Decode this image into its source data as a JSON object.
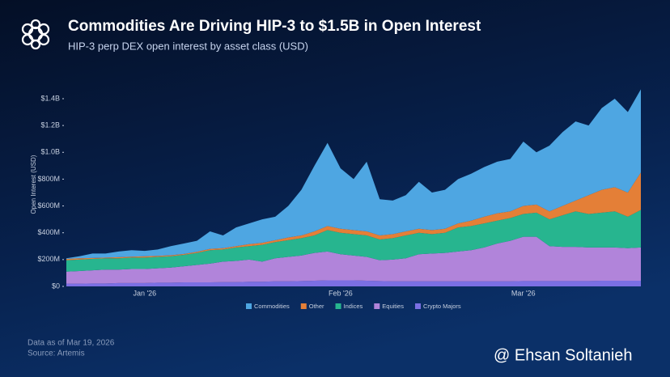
{
  "chart_data": {
    "type": "stacked-area",
    "title": "Commodities Are Driving HIP-3 to $1.5B in Open Interest",
    "subtitle": "HIP-3 perp DEX open interest by asset class (USD)",
    "y_label": "Open Interest (USD)",
    "footnote": "Data as of Mar 19, 2026",
    "source": "Source: Artemis",
    "watermark": "@ Ehsan Soltanieh",
    "categories": [
      null,
      null,
      null,
      null,
      null,
      null,
      "Jan '26",
      null,
      null,
      null,
      null,
      null,
      null,
      null,
      null,
      null,
      null,
      null,
      null,
      null,
      null,
      "Feb '26",
      null,
      null,
      null,
      null,
      null,
      null,
      null,
      null,
      null,
      null,
      null,
      null,
      null,
      "Mar '26",
      null,
      null,
      null,
      null,
      null,
      null,
      null,
      null,
      null
    ],
    "ylim": [
      0,
      1500000000
    ],
    "yticks": [
      {
        "value": 0,
        "label": "$0"
      },
      {
        "value": 200000000,
        "label": "$200M"
      },
      {
        "value": 400000000,
        "label": "$400M"
      },
      {
        "value": 600000000,
        "label": "$600M"
      },
      {
        "value": 800000000,
        "label": "$800M"
      },
      {
        "value": 1000000000,
        "label": "$1.0B"
      },
      {
        "value": 1200000000,
        "label": "$1.2B"
      },
      {
        "value": 1400000000,
        "label": "$1.4B"
      }
    ],
    "series": [
      {
        "name": "Commodities",
        "color": "#4ea6e2",
        "values": [
          5000000,
          15000000,
          33000000,
          30000000,
          42000000,
          48000000,
          40000000,
          47000000,
          68000000,
          78000000,
          82000000,
          130000000,
          95000000,
          140000000,
          155000000,
          175000000,
          175000000,
          235000000,
          340000000,
          490000000,
          620000000,
          450000000,
          380000000,
          520000000,
          270000000,
          250000000,
          270000000,
          350000000,
          280000000,
          290000000,
          330000000,
          350000000,
          370000000,
          385000000,
          390000000,
          480000000,
          390000000,
          490000000,
          550000000,
          590000000,
          520000000,
          610000000,
          660000000,
          600000000,
          620000000
        ]
      },
      {
        "name": "Other",
        "color": "#e47f37",
        "values": [
          10000000,
          10000000,
          7000000,
          5000000,
          8000000,
          7000000,
          10000000,
          8000000,
          7000000,
          7000000,
          8000000,
          10000000,
          10000000,
          10000000,
          15000000,
          15000000,
          15000000,
          20000000,
          20000000,
          30000000,
          30000000,
          30000000,
          30000000,
          30000000,
          30000000,
          30000000,
          30000000,
          30000000,
          30000000,
          30000000,
          30000000,
          40000000,
          50000000,
          55000000,
          50000000,
          60000000,
          60000000,
          60000000,
          70000000,
          80000000,
          140000000,
          170000000,
          180000000,
          180000000,
          280000000
        ]
      },
      {
        "name": "Indices",
        "color": "#27b58f",
        "values": [
          85000000,
          85000000,
          85000000,
          85000000,
          85000000,
          85000000,
          85000000,
          85000000,
          85000000,
          85000000,
          90000000,
          100000000,
          90000000,
          100000000,
          100000000,
          125000000,
          120000000,
          125000000,
          130000000,
          130000000,
          160000000,
          160000000,
          160000000,
          160000000,
          155000000,
          160000000,
          170000000,
          160000000,
          145000000,
          150000000,
          180000000,
          180000000,
          180000000,
          170000000,
          170000000,
          170000000,
          180000000,
          200000000,
          235000000,
          265000000,
          250000000,
          260000000,
          270000000,
          235000000,
          280000000
        ]
      },
      {
        "name": "Equities",
        "color": "#b184da",
        "values": [
          90000000,
          95000000,
          98000000,
          103000000,
          100000000,
          105000000,
          105000000,
          107000000,
          112000000,
          120000000,
          130000000,
          140000000,
          153000000,
          158000000,
          165000000,
          150000000,
          172000000,
          182000000,
          190000000,
          208000000,
          215000000,
          195000000,
          185000000,
          178000000,
          155000000,
          162000000,
          172000000,
          202000000,
          207000000,
          212000000,
          222000000,
          232000000,
          252000000,
          282000000,
          302000000,
          330000000,
          330000000,
          260000000,
          255000000,
          255000000,
          250000000,
          248000000,
          248000000,
          243000000,
          248000000
        ]
      },
      {
        "name": "Crypto Majors",
        "color": "#7b6fe3",
        "values": [
          20000000,
          20000000,
          22000000,
          22000000,
          25000000,
          25000000,
          25000000,
          28000000,
          28000000,
          30000000,
          30000000,
          30000000,
          32000000,
          32000000,
          35000000,
          35000000,
          38000000,
          38000000,
          40000000,
          42000000,
          45000000,
          45000000,
          45000000,
          42000000,
          40000000,
          38000000,
          38000000,
          38000000,
          38000000,
          38000000,
          38000000,
          38000000,
          38000000,
          38000000,
          38000000,
          40000000,
          40000000,
          40000000,
          40000000,
          40000000,
          40000000,
          42000000,
          42000000,
          42000000,
          42000000
        ]
      }
    ]
  }
}
